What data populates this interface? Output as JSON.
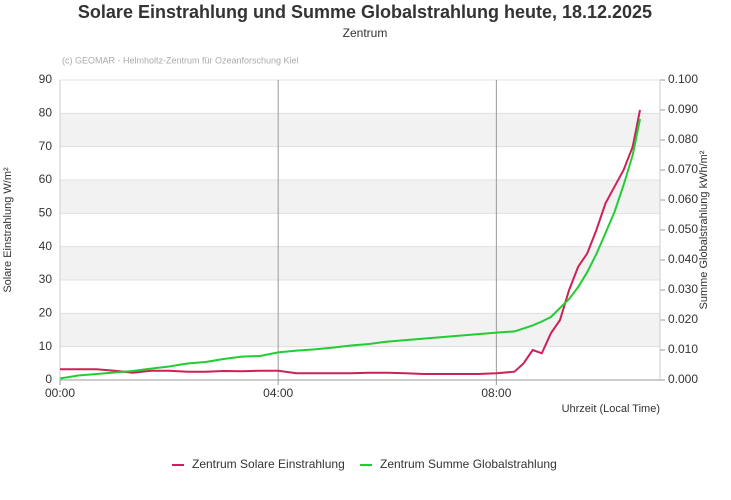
{
  "chart_data": {
    "type": "line",
    "title": "Solare Einstrahlung und Summe Globalstrahlung heute, 18.12.2025",
    "subtitle": "Zentrum",
    "credit": "(c) GEOMAR - Helmholtz-Zentrum für Ozeanforschung Kiel",
    "x_label": "Uhrzeit (Local Time)",
    "y_label": "Solare Einstrahlung W/m²",
    "y2_label": "Summe Globalstrahlung kWh/m²",
    "x": [
      0,
      20,
      40,
      60,
      80,
      100,
      120,
      140,
      160,
      180,
      200,
      220,
      240,
      260,
      280,
      300,
      320,
      340,
      360,
      380,
      400,
      420,
      440,
      460,
      480,
      500,
      510,
      520,
      530,
      540,
      550,
      560,
      570,
      580,
      590,
      600,
      610,
      620,
      630,
      638
    ],
    "xlim": [
      0,
      660
    ],
    "xticks": [
      {
        "value": 0,
        "label": "00:00"
      },
      {
        "value": 240,
        "label": "04:00"
      },
      {
        "value": 480,
        "label": "08:00"
      }
    ],
    "ylim": [
      0,
      90
    ],
    "yticks": [
      0,
      10,
      20,
      30,
      40,
      50,
      60,
      70,
      80,
      90
    ],
    "y2lim": [
      0,
      0.1
    ],
    "y2ticks": [
      {
        "value": 0,
        "label": "0.000"
      },
      {
        "value": 0.01,
        "label": "0.010"
      },
      {
        "value": 0.02,
        "label": "0.020"
      },
      {
        "value": 0.03,
        "label": "0.030"
      },
      {
        "value": 0.04,
        "label": "0.040"
      },
      {
        "value": 0.05,
        "label": "0.050"
      },
      {
        "value": 0.06,
        "label": "0.060"
      },
      {
        "value": 0.07,
        "label": "0.070"
      },
      {
        "value": 0.08,
        "label": "0.080"
      },
      {
        "value": 0.09,
        "label": "0.090"
      },
      {
        "value": 0.1,
        "label": "0.100"
      }
    ],
    "bands": true,
    "legend": "bottom",
    "series": [
      {
        "name": "Zentrum Solare Einstrahlung",
        "color": "#cc2255",
        "values": [
          3.2,
          3.2,
          3.2,
          2.8,
          2.2,
          2.8,
          2.8,
          2.5,
          2.5,
          2.7,
          2.6,
          2.8,
          2.8,
          2.0,
          2.0,
          2.0,
          2.0,
          2.2,
          2.2,
          2.0,
          1.8,
          1.8,
          1.8,
          1.8,
          2.0,
          2.5,
          5,
          9,
          8,
          14,
          18,
          27,
          34,
          38,
          45,
          53,
          58,
          63,
          70,
          81
        ]
      },
      {
        "name": "Zentrum Summe Globalstrahlung",
        "color": "#22cc33",
        "axis": "y2",
        "values": [
          0.0005,
          0.0015,
          0.002,
          0.0025,
          0.003,
          0.0038,
          0.0045,
          0.0055,
          0.006,
          0.007,
          0.0078,
          0.008,
          0.0092,
          0.0098,
          0.0102,
          0.0108,
          0.0115,
          0.012,
          0.0128,
          0.0133,
          0.0138,
          0.0143,
          0.0148,
          0.0153,
          0.0158,
          0.0162,
          0.0172,
          0.0182,
          0.0195,
          0.021,
          0.024,
          0.027,
          0.031,
          0.036,
          0.042,
          0.049,
          0.056,
          0.065,
          0.075,
          0.087
        ]
      }
    ]
  }
}
